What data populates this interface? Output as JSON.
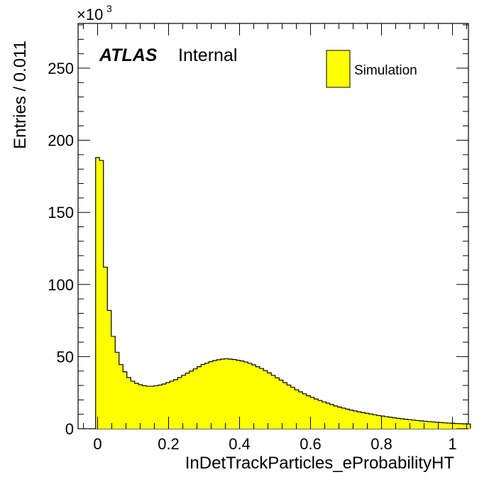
{
  "chart_data": {
    "type": "bar",
    "xlabel": "InDetTrackParticles_eProbabilityHT",
    "ylabel": "Entries / 0.011",
    "y_scale_factor": "×10",
    "y_scale_exponent": "3",
    "experiment_label": "ATLAS",
    "status_label": "Internal",
    "legend": [
      {
        "name": "Simulation",
        "color": "#ffff00"
      }
    ],
    "legend_position": "top-right",
    "xlim": [
      -0.055,
      1.045
    ],
    "ylim": [
      0,
      281
    ],
    "xticks": [
      "0",
      "0.2",
      "0.4",
      "0.6",
      "0.8",
      "1"
    ],
    "xtick_values": [
      0,
      0.2,
      0.4,
      0.6,
      0.8,
      1.0
    ],
    "yticks": [
      "0",
      "50",
      "100",
      "150",
      "200",
      "250"
    ],
    "ytick_values": [
      0,
      50,
      100,
      150,
      200,
      250
    ],
    "grid": false,
    "fill_color": "#ffff00",
    "line_color": "#000000",
    "bin_width": 0.011,
    "x_start": -0.0055,
    "series": [
      {
        "name": "Simulation",
        "values": [
          188,
          186,
          112,
          82,
          64,
          53,
          44.5,
          39.5,
          35.5,
          33,
          31.5,
          30.5,
          29.8,
          29.5,
          29.5,
          29.8,
          30.3,
          31,
          32,
          33,
          34,
          35.5,
          37,
          38.5,
          40,
          41.5,
          43,
          44.5,
          45.5,
          46.5,
          47.3,
          47.8,
          48.3,
          48.5,
          48.3,
          48,
          47.5,
          47,
          46.3,
          45.3,
          44.3,
          43,
          41.8,
          40.3,
          38.7,
          37,
          35.3,
          33.7,
          32,
          30.3,
          28.7,
          27,
          25.6,
          24.2,
          22.9,
          21.7,
          20.6,
          19.6,
          18.6,
          17.7,
          16.8,
          15.8,
          15,
          14.3,
          13.6,
          12.9,
          12.3,
          11.7,
          11.2,
          10.7,
          10.2,
          9.7,
          9.2,
          8.8,
          8.4,
          8,
          7.6,
          7.2,
          6.9,
          6.6,
          6.3,
          6,
          5.7,
          5.4,
          5.2,
          4.9,
          4.7,
          4.5,
          4.3,
          4.1,
          3.9,
          3.8,
          3.6,
          3.5,
          3.4,
          3.3
        ]
      }
    ]
  }
}
